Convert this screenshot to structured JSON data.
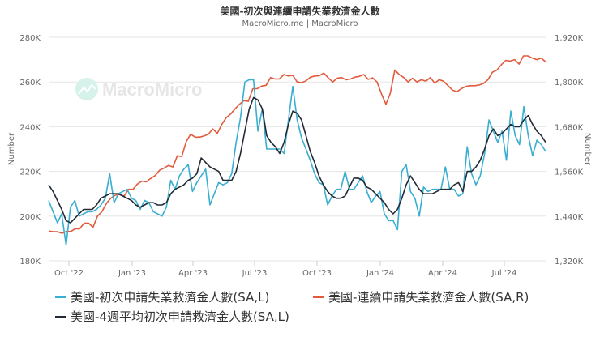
{
  "header": {
    "title": "美國-初次與連續申請失業救濟金人數",
    "subtitle": "MacroMicro.me | MacroMicro"
  },
  "watermark": {
    "text": "MacroMicro",
    "icon": "chart-line-icon",
    "color": "#cdeee6"
  },
  "legend": {
    "items": [
      {
        "label": "美國-初次申請失業救濟金人數(SA,L)",
        "color": "#3aaed0"
      },
      {
        "label": "美國-連續申請失業救濟金人數(SA,R)",
        "color": "#e15b3c"
      },
      {
        "label": "美國-4週平均初次申請救濟金人數(SA,L)",
        "color": "#222a36"
      }
    ]
  },
  "chart_data": {
    "type": "line",
    "title": "美國-初次與連續申請失業救濟金人數",
    "subtitle": "MacroMicro.me | MacroMicro",
    "xlabel": "",
    "ylabel": "Number",
    "ylabel_right": "Number",
    "x_ticks": [
      "Oct '22",
      "Jan '23",
      "Apr '23",
      "Jul '23",
      "Oct '23",
      "Jan '24",
      "Apr '24",
      "Jul '24"
    ],
    "y_left": {
      "ticks": [
        "180K",
        "200K",
        "220K",
        "240K",
        "260K",
        "280K"
      ],
      "range": [
        180000,
        280000
      ]
    },
    "y_right": {
      "ticks": [
        "1,320K",
        "1,440K",
        "1,560K",
        "1,680K",
        "1,800K",
        "1,920K"
      ],
      "range": [
        1320000,
        1920000
      ]
    },
    "grid": true,
    "legend_position": "bottom",
    "frequency": "weekly",
    "start": "2022-09-03",
    "series": [
      {
        "name": "美國-初次申請失業救濟金人數(SA,L)",
        "axis": "left",
        "color": "#3aaed0",
        "values": [
          207,
          202,
          197,
          201,
          187,
          204,
          207,
          200,
          201,
          202,
          202,
          203,
          205,
          208,
          219,
          206,
          210,
          211,
          212,
          208,
          207,
          203,
          207,
          206,
          202,
          201,
          200,
          204,
          216,
          212,
          218,
          221,
          223,
          211,
          215,
          218,
          221,
          205,
          210,
          215,
          214,
          215,
          219,
          233,
          244,
          260,
          261,
          261,
          238,
          248,
          230,
          230,
          230,
          230,
          228,
          243,
          258,
          243,
          235,
          230,
          225,
          219,
          215,
          214,
          205,
          209,
          212,
          212,
          220,
          212,
          212,
          215,
          218,
          211,
          206,
          209,
          211,
          201,
          198,
          198,
          194,
          220,
          223,
          211,
          208,
          200,
          213,
          211,
          212,
          212,
          212,
          222,
          212,
          212,
          209,
          210,
          231,
          219,
          214,
          218,
          228,
          243,
          238,
          233,
          238,
          225,
          247,
          236,
          232,
          249,
          236,
          227,
          234,
          232,
          229
        ]
      },
      {
        "name": "美國-連續申請失業救濟金人數(SA,R)",
        "axis": "right",
        "color": "#e15b3c",
        "values": [
          1400,
          1398,
          1398,
          1394,
          1399,
          1399,
          1406,
          1406,
          1421,
          1421,
          1410,
          1440,
          1452,
          1474,
          1488,
          1496,
          1498,
          1494,
          1512,
          1512,
          1526,
          1534,
          1532,
          1541,
          1549,
          1563,
          1569,
          1576,
          1572,
          1602,
          1600,
          1640,
          1660,
          1652,
          1652,
          1655,
          1660,
          1674,
          1662,
          1686,
          1704,
          1714,
          1728,
          1740,
          1750,
          1748,
          1782,
          1782,
          1789,
          1791,
          1812,
          1808,
          1808,
          1820,
          1816,
          1818,
          1800,
          1798,
          1803,
          1813,
          1816,
          1817,
          1824,
          1811,
          1800,
          1810,
          1812,
          1806,
          1808,
          1813,
          1815,
          1820,
          1807,
          1811,
          1800,
          1768,
          1740,
          1770,
          1832,
          1820,
          1812,
          1800,
          1810,
          1800,
          1806,
          1802,
          1812,
          1797,
          1806,
          1802,
          1790,
          1778,
          1774,
          1782,
          1788,
          1790,
          1790,
          1792,
          1796,
          1806,
          1826,
          1832,
          1846,
          1858,
          1856,
          1860,
          1848,
          1870,
          1870,
          1864,
          1860,
          1864,
          1854
        ]
      },
      {
        "name": "美國-4週平均初次申請救濟金人數(SA,L)",
        "axis": "left",
        "color": "#222a36",
        "values": [
          214,
          211,
          207,
          203,
          198,
          197,
          199,
          201,
          203,
          203,
          203,
          205,
          208,
          209,
          210,
          210,
          210,
          209,
          208,
          207,
          205,
          204,
          205,
          206,
          206,
          205,
          205,
          206,
          210,
          212,
          213,
          214,
          216,
          217,
          219,
          226,
          224,
          222,
          221,
          220,
          216,
          216,
          216,
          220,
          228,
          238,
          248,
          253,
          252,
          248,
          236,
          233,
          231,
          228,
          233,
          241,
          247,
          246,
          243,
          236,
          229,
          224,
          218,
          214,
          211,
          209,
          208,
          208,
          209,
          213,
          217,
          217,
          216,
          213,
          212,
          210,
          208,
          206,
          203,
          201,
          203,
          208,
          214,
          218,
          215,
          212,
          210,
          210,
          210,
          211,
          212,
          212,
          212,
          214,
          215,
          211,
          220,
          220,
          222,
          225,
          230,
          236,
          239,
          236,
          237,
          239,
          241,
          240,
          240,
          243,
          245,
          241,
          238,
          236,
          233
        ]
      }
    ]
  }
}
